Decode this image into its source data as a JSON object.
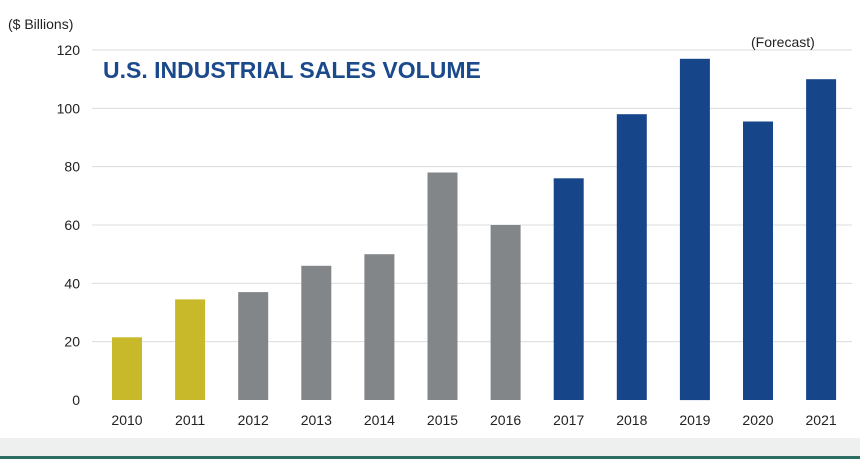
{
  "chart_data": {
    "type": "bar",
    "title": "U.S. INDUSTRIAL SALES VOLUME",
    "ylabel": "($ Billions)",
    "xlabel": "",
    "annotation": "(Forecast)",
    "categories": [
      "2010",
      "2011",
      "2012",
      "2013",
      "2014",
      "2015",
      "2016",
      "2017",
      "2018",
      "2019",
      "2020",
      "2021"
    ],
    "values": [
      21.5,
      34.5,
      37,
      46,
      50,
      78,
      60,
      76,
      98,
      117,
      95.5,
      110
    ],
    "bar_colors": [
      "#c8b92a",
      "#c8b92a",
      "#828688",
      "#828688",
      "#828688",
      "#828688",
      "#828688",
      "#17458a",
      "#17458a",
      "#17458a",
      "#17458a",
      "#17458a"
    ],
    "ylim": [
      0,
      120
    ],
    "yticks": [
      0,
      20,
      40,
      60,
      80,
      100,
      120
    ],
    "grid": true,
    "colors": {
      "title": "#1b4a8c",
      "grid": "#dcdcdc",
      "text": "#222222"
    }
  }
}
